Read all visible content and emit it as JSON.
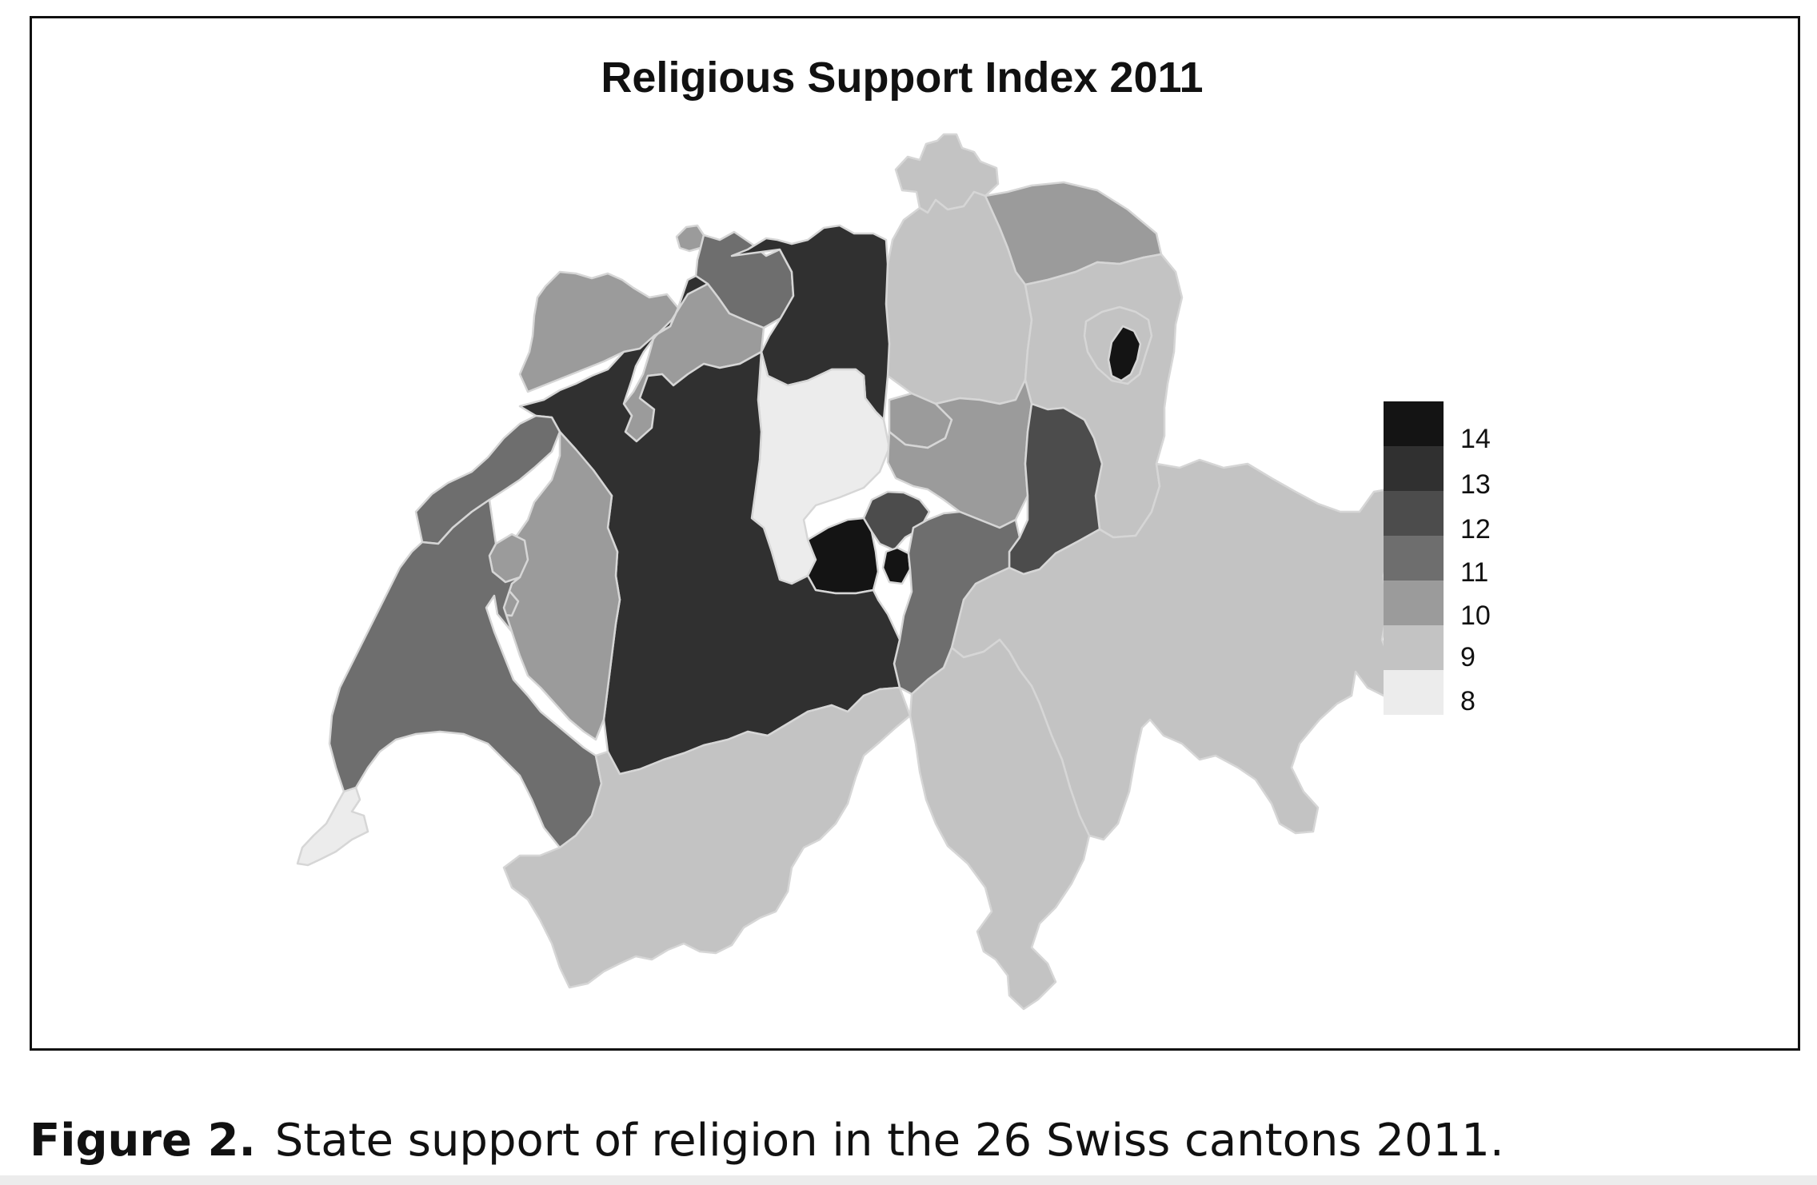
{
  "title": "Religious Support Index 2011",
  "caption": {
    "label": "Figure 2.",
    "text": "State support of religion in the 26 Swiss cantons 2011."
  },
  "legend": [
    {
      "value": "14",
      "color": "#141414"
    },
    {
      "value": "13",
      "color": "#303030"
    },
    {
      "value": "12",
      "color": "#4c4c4c"
    },
    {
      "value": "11",
      "color": "#6e6e6e"
    },
    {
      "value": "10",
      "color": "#9b9b9b"
    },
    {
      "value": "9",
      "color": "#c3c3c3"
    },
    {
      "value": "8",
      "color": "#ececec"
    }
  ],
  "regions": [
    {
      "name": "canton-schaffhausen",
      "value": 9
    },
    {
      "name": "canton-thurgau",
      "value": 10
    },
    {
      "name": "canton-zurich",
      "value": 9
    },
    {
      "name": "canton-appenzell-outer-rhodes",
      "value": 9
    },
    {
      "name": "canton-appenzell-inner-rhodes",
      "value": 14
    },
    {
      "name": "canton-st-gallen",
      "value": 9
    },
    {
      "name": "canton-basel-stadt",
      "value": 10
    },
    {
      "name": "canton-basel-landschaft",
      "value": 11
    },
    {
      "name": "canton-aargau",
      "value": 13
    },
    {
      "name": "canton-solothurn",
      "value": 10
    },
    {
      "name": "canton-jura",
      "value": 10
    },
    {
      "name": "canton-lucerne",
      "value": 8
    },
    {
      "name": "canton-zug",
      "value": 10
    },
    {
      "name": "canton-schwyz",
      "value": 10
    },
    {
      "name": "canton-glarus",
      "value": 12
    },
    {
      "name": "canton-graubunden",
      "value": 9
    },
    {
      "name": "canton-obwalden",
      "value": 14
    },
    {
      "name": "canton-nidwalden",
      "value": 12
    },
    {
      "name": "canton-uri",
      "value": 11
    },
    {
      "name": "canton-ticino",
      "value": 9
    },
    {
      "name": "canton-bern",
      "value": 13
    },
    {
      "name": "canton-neuchatel",
      "value": 11
    },
    {
      "name": "canton-fribourg",
      "value": 10
    },
    {
      "name": "canton-vaud",
      "value": 11
    },
    {
      "name": "canton-valais",
      "value": 9
    },
    {
      "name": "canton-geneva",
      "value": 8
    }
  ]
}
